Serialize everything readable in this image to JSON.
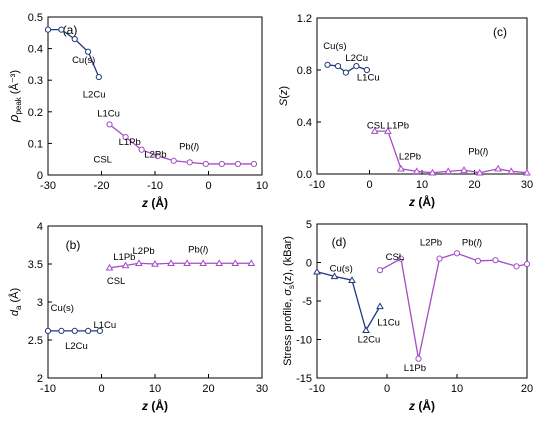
{
  "colors": {
    "blue": "#1f3a7a",
    "purple": "#a64cc4",
    "frame": "#000000"
  },
  "chart_data": [
    {
      "panel_label": "(a)",
      "type": "line",
      "xlabel": "z (Å)",
      "ylabel": "ρpeak (Å⁻³)",
      "xlim": [
        -30,
        10
      ],
      "ylim": [
        0,
        0.5
      ],
      "xticks": [
        -30,
        -20,
        -10,
        0,
        10
      ],
      "yticks": [
        0,
        0.1,
        0.2,
        0.3,
        0.4,
        0.5
      ],
      "xtick_labels": [
        "-30",
        "-20",
        "-10",
        "0",
        "10"
      ],
      "ytick_labels": [
        "0",
        "0.1",
        "0.2",
        "0.3",
        "0.4",
        "0.5"
      ],
      "series": [
        {
          "color": "blue",
          "marker": "circle",
          "x": [
            -30,
            -27.5,
            -25,
            -22.5,
            -20.5
          ],
          "y": [
            0.46,
            0.46,
            0.43,
            0.39,
            0.31
          ]
        },
        {
          "color": "purple",
          "marker": "circle",
          "x": [
            -18.5,
            -15.5,
            -12.5,
            -9.5,
            -6.5,
            -3.5,
            -0.5,
            2.5,
            5.5,
            8.5
          ],
          "y": [
            0.16,
            0.12,
            0.08,
            0.06,
            0.045,
            0.04,
            0.035,
            0.035,
            0.035,
            0.035
          ]
        }
      ],
      "annotations": [
        {
          "text": "Cu(s)",
          "x": -25.5,
          "y": 0.355
        },
        {
          "text": "L2Cu",
          "x": -23.5,
          "y": 0.245
        },
        {
          "text": "L1Cu",
          "x": -20.8,
          "y": 0.185
        },
        {
          "text": "L1Pb",
          "x": -16.8,
          "y": 0.095
        },
        {
          "text": "CSL",
          "x": -21.5,
          "y": 0.04
        },
        {
          "text": "L2Pb",
          "x": -12.0,
          "y": 0.055
        },
        {
          "text": "Pb(",
          "text_italic": "l",
          "text_end": ")",
          "x": -5.5,
          "y": 0.08
        }
      ]
    },
    {
      "panel_label": "(b)",
      "type": "line",
      "xlabel": "z (Å)",
      "ylabel": "da (Å)",
      "xlim": [
        -10,
        30
      ],
      "ylim": [
        2,
        4
      ],
      "xticks": [
        -10,
        0,
        10,
        20,
        30
      ],
      "yticks": [
        2,
        2.5,
        3,
        3.5,
        4
      ],
      "xtick_labels": [
        "-10",
        "0",
        "10",
        "20",
        "30"
      ],
      "ytick_labels": [
        "2",
        "2.5",
        "3",
        "3.5",
        "4"
      ],
      "series": [
        {
          "color": "blue",
          "marker": "circle",
          "x": [
            -10,
            -7.5,
            -5,
            -2.5,
            -0.3
          ],
          "y": [
            2.62,
            2.62,
            2.62,
            2.62,
            2.62
          ]
        },
        {
          "color": "purple",
          "marker": "triangle",
          "x": [
            1.5,
            4.5,
            7,
            10,
            13,
            16,
            19,
            22,
            25,
            28
          ],
          "y": [
            3.45,
            3.48,
            3.51,
            3.5,
            3.51,
            3.51,
            3.51,
            3.51,
            3.51,
            3.51
          ]
        }
      ],
      "annotations": [
        {
          "text": "Cu(s)",
          "x": -9.5,
          "y": 2.88
        },
        {
          "text": "L1Cu",
          "x": -1.5,
          "y": 2.66
        },
        {
          "text": "L2Cu",
          "x": -6.8,
          "y": 2.38
        },
        {
          "text": "L2Pb",
          "x": 5.8,
          "y": 3.63
        },
        {
          "text": "L1Pb",
          "x": 2.2,
          "y": 3.55
        },
        {
          "text": "CSL",
          "x": 1.0,
          "y": 3.24
        },
        {
          "text": "Pb(",
          "text_italic": "l",
          "text_end": ")",
          "x": 16.2,
          "y": 3.65
        }
      ]
    },
    {
      "panel_label": "(c)",
      "type": "line",
      "xlabel": "z (Å)",
      "ylabel": "S(z)",
      "xlim": [
        -10,
        30
      ],
      "ylim": [
        0,
        1.2
      ],
      "xticks": [
        -10,
        0,
        10,
        20,
        30
      ],
      "yticks": [
        0,
        0.4,
        0.8,
        1.2
      ],
      "xtick_labels": [
        "-10",
        "0",
        "10",
        "20",
        "30"
      ],
      "ytick_labels": [
        "0.0",
        "0.4",
        "0.8",
        "1.2"
      ],
      "series": [
        {
          "color": "blue",
          "marker": "circle",
          "x": [
            -8,
            -6,
            -4.5,
            -2.5,
            -0.5
          ],
          "y": [
            0.84,
            0.83,
            0.78,
            0.83,
            0.8
          ]
        },
        {
          "color": "purple",
          "marker": "triangle",
          "x": [
            1,
            3.5,
            6,
            9,
            12,
            15,
            18,
            21,
            24.5,
            27,
            30
          ],
          "y": [
            0.33,
            0.33,
            0.04,
            0.02,
            0.01,
            0.02,
            0.03,
            0.01,
            0.04,
            0.02,
            0.01
          ]
        }
      ],
      "annotations": [
        {
          "text": "Cu(s)",
          "x": -8.8,
          "y": 0.96
        },
        {
          "text": "L2Cu",
          "x": -4.6,
          "y": 0.87
        },
        {
          "text": "L1Cu",
          "x": -2.4,
          "y": 0.72
        },
        {
          "text": "CSL",
          "x": -0.5,
          "y": 0.35
        },
        {
          "text": "L1Pb",
          "x": 3.3,
          "y": 0.35
        },
        {
          "text": "L2Pb",
          "x": 5.6,
          "y": 0.11
        },
        {
          "text": "Pb(",
          "text_italic": "l",
          "text_end": ")",
          "x": 18.8,
          "y": 0.15
        }
      ]
    },
    {
      "panel_label": "(d)",
      "type": "line",
      "xlabel": "z (Å)",
      "ylabel": "Stress profile, σs(z), (kBar)",
      "xlim": [
        -10,
        20
      ],
      "ylim": [
        -15,
        5
      ],
      "xticks": [
        -10,
        0,
        10,
        20
      ],
      "yticks": [
        -15,
        -10,
        -5,
        0,
        5
      ],
      "xtick_labels": [
        "-10",
        "0",
        "10",
        "20"
      ],
      "ytick_labels": [
        "-15",
        "-10",
        "-5",
        "0",
        "5"
      ],
      "series": [
        {
          "color": "blue",
          "marker": "triangle",
          "x": [
            -10,
            -7.5,
            -5,
            -3,
            -1
          ],
          "y": [
            -1.2,
            -1.8,
            -2.3,
            -8.8,
            -5.7
          ]
        },
        {
          "color": "purple",
          "marker": "circle",
          "x": [
            -1,
            2,
            4.5,
            7.5,
            10,
            13,
            15.5,
            18.5,
            21
          ],
          "y": [
            -1.0,
            0.5,
            -12.5,
            0.5,
            1.2,
            0.2,
            0.3,
            -0.5,
            -0.2
          ]
        }
      ],
      "annotations": [
        {
          "text": "Cu(s)",
          "x": -8.2,
          "y": -1.2
        },
        {
          "text": "L2Cu",
          "x": -4.2,
          "y": -10.4
        },
        {
          "text": "L1Cu",
          "x": -1.4,
          "y": -8.2
        },
        {
          "text": "CSL",
          "x": -0.2,
          "y": 0.3
        },
        {
          "text": "L1Pb",
          "x": 2.4,
          "y": -14.1
        },
        {
          "text": "L2Pb",
          "x": 4.7,
          "y": 2.2
        },
        {
          "text": "Pb(",
          "text_italic": "l",
          "text_end": ")",
          "x": 10.7,
          "y": 2.2
        }
      ]
    }
  ]
}
